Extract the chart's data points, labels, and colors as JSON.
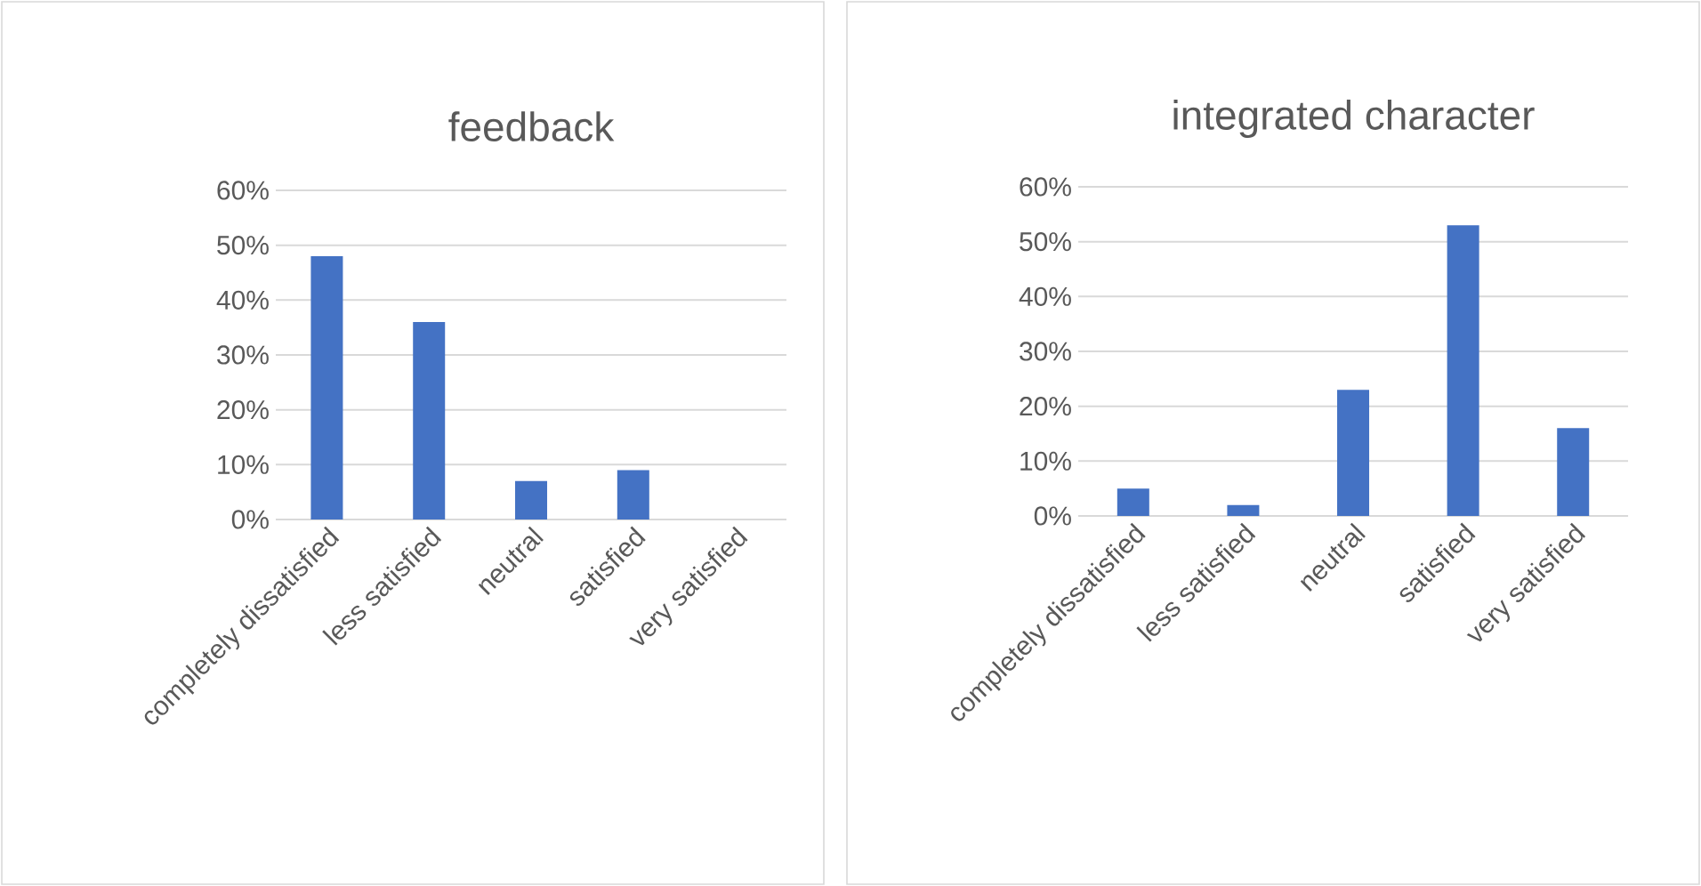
{
  "chart_data": [
    {
      "type": "bar",
      "title": "feedback",
      "categories": [
        "completely dissatisfied",
        "less satisfied",
        "neutral",
        "satisfied",
        "very satisfied"
      ],
      "values": [
        48,
        36,
        7,
        9,
        0
      ],
      "color": "#4472c4",
      "ylim": [
        0,
        60
      ],
      "yticks": [
        {
          "value": 0,
          "label": "0%"
        },
        {
          "value": 10,
          "label": "10%"
        },
        {
          "value": 20,
          "label": "20%"
        },
        {
          "value": 30,
          "label": "30%"
        },
        {
          "value": 40,
          "label": "40%"
        },
        {
          "value": 50,
          "label": "50%"
        },
        {
          "value": 60,
          "label": "60%"
        }
      ],
      "grid": "y"
    },
    {
      "type": "bar",
      "title": "integrated character",
      "categories": [
        "completely dissatisfied",
        "less satisfied",
        "neutral",
        "satisfied",
        "very satisfied"
      ],
      "values": [
        5,
        2,
        23,
        53,
        16
      ],
      "color": "#4472c4",
      "ylim": [
        0,
        60
      ],
      "yticks": [
        {
          "value": 0,
          "label": "0%"
        },
        {
          "value": 10,
          "label": "10%"
        },
        {
          "value": 20,
          "label": "20%"
        },
        {
          "value": 30,
          "label": "30%"
        },
        {
          "value": 40,
          "label": "40%"
        },
        {
          "value": 50,
          "label": "50%"
        },
        {
          "value": 60,
          "label": "60%"
        }
      ],
      "grid": "y"
    }
  ]
}
